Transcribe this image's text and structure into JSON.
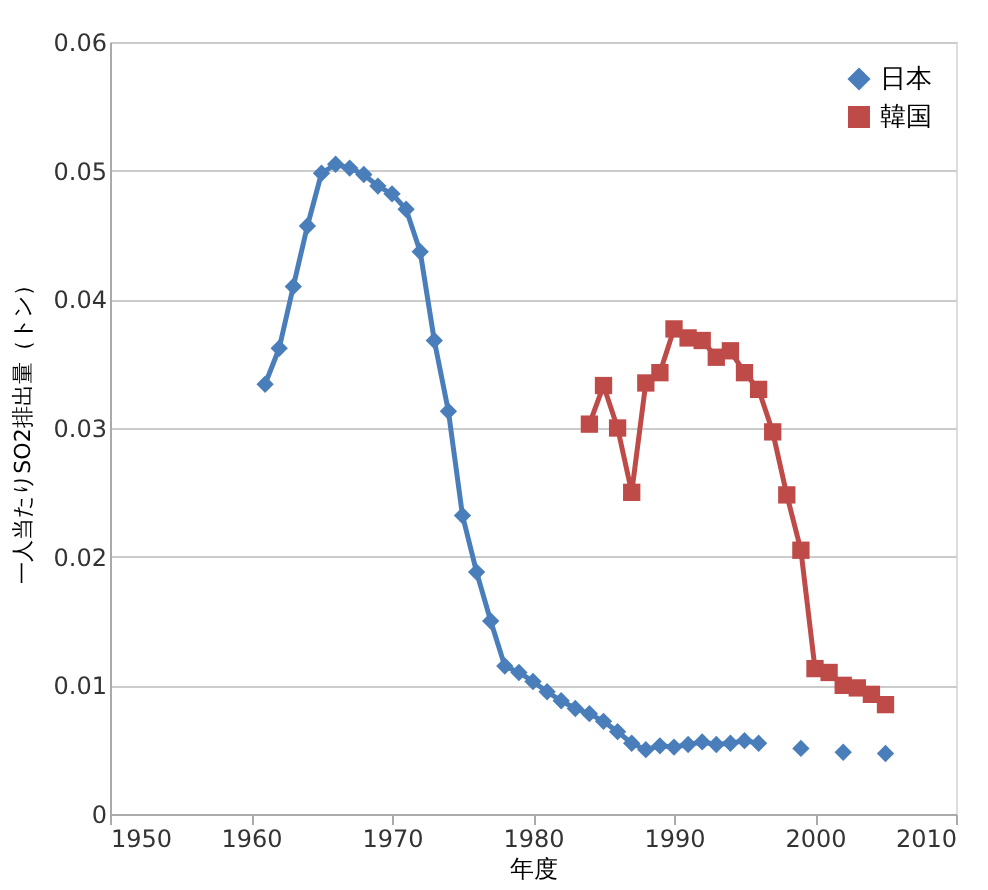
{
  "chart_data": {
    "type": "line",
    "xlabel": "年度",
    "ylabel": "一人当たりSO2排出量（トン）",
    "xlim": [
      1950,
      2010
    ],
    "xticks": [
      1950,
      1960,
      1970,
      1980,
      1990,
      2000,
      2010
    ],
    "ylim": [
      0,
      0.06
    ],
    "yticks": [
      0,
      0.01,
      0.02,
      0.03,
      0.04,
      0.05,
      0.06
    ],
    "grid": "y",
    "legend": "top right",
    "line_style": "solid",
    "series": [
      {
        "name": "日本",
        "color": "#4a7ebb",
        "marker": "diamond",
        "x": [
          1961,
          1962,
          1963,
          1964,
          1965,
          1966,
          1967,
          1968,
          1969,
          1970,
          1971,
          1972,
          1973,
          1974,
          1975,
          1976,
          1977,
          1978,
          1979,
          1980,
          1981,
          1982,
          1983,
          1984,
          1985,
          1986,
          1987,
          1988,
          1989,
          1990,
          1991,
          1992,
          1993,
          1994,
          1995,
          1996,
          1997,
          1998,
          1999,
          2000,
          2001,
          2002,
          2003,
          2004,
          2005
        ],
        "values": [
          0.0334,
          0.0362,
          0.041,
          0.0457,
          0.0498,
          0.0505,
          0.0502,
          0.0497,
          0.0488,
          0.0482,
          0.047,
          0.0437,
          0.0368,
          0.0313,
          0.0232,
          0.0188,
          0.015,
          0.0115,
          0.011,
          0.0103,
          0.0095,
          0.0088,
          0.0082,
          0.0078,
          0.0072,
          0.0064,
          0.0055,
          0.005,
          0.0053,
          0.0052,
          0.0054,
          0.0056,
          0.0054,
          0.0055,
          0.0057,
          0.0055,
          null,
          null,
          0.0051,
          null,
          null,
          0.0048,
          null,
          null,
          0.0047
        ]
      },
      {
        "name": "韓国",
        "color": "#be4b48",
        "marker": "square",
        "x": [
          1984,
          1985,
          1986,
          1987,
          1988,
          1989,
          1990,
          1991,
          1992,
          1993,
          1994,
          1995,
          1996,
          1997,
          1998,
          1999,
          2000,
          2001,
          2002,
          2003,
          2004,
          2005
        ],
        "values": [
          0.0303,
          0.0333,
          0.03,
          0.025,
          0.0335,
          0.0343,
          0.0377,
          0.037,
          0.0368,
          0.0355,
          0.036,
          0.0343,
          0.033,
          0.0297,
          0.0248,
          0.0205,
          0.0113,
          0.011,
          0.01,
          0.0098,
          0.0093,
          0.0085
        ]
      }
    ]
  }
}
